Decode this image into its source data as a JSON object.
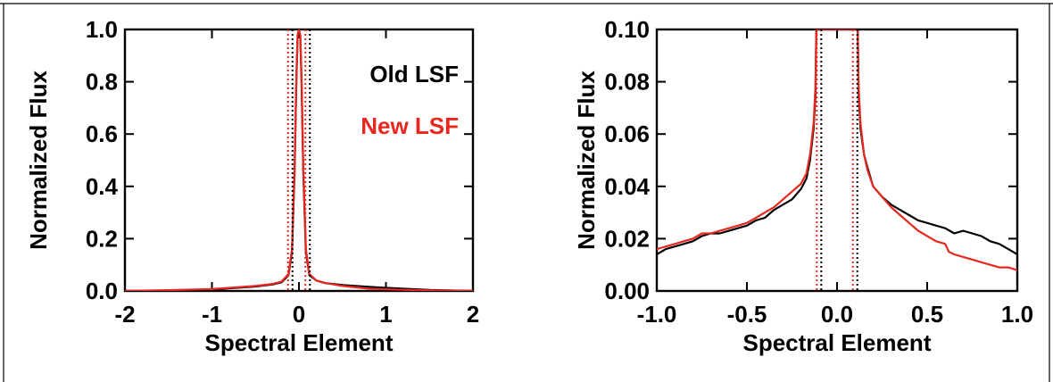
{
  "colors": {
    "old": "#000000",
    "new": "#e8281f"
  },
  "chart_data": [
    {
      "type": "line",
      "title": "",
      "xlabel": "Spectral Element",
      "ylabel": "Normalized Flux",
      "xlim": [
        -2,
        2
      ],
      "ylim": [
        0,
        1.0
      ],
      "x_ticks": [
        -2,
        -1,
        0,
        1,
        2
      ],
      "x_tick_labels": [
        "-2",
        "-1",
        "0",
        "1",
        "2"
      ],
      "y_ticks": [
        0,
        0.2,
        0.4,
        0.6,
        0.8,
        1.0
      ],
      "y_tick_labels": [
        "0.0",
        "0.2",
        "0.4",
        "0.6",
        "0.8",
        "1.0"
      ],
      "grid": false,
      "legend": {
        "placement": "top-right",
        "entries": [
          "Old LSF",
          "New LSF"
        ]
      },
      "vlines": [
        {
          "x": -0.1,
          "style": "dotted",
          "series": "Old LSF"
        },
        {
          "x": 0.1,
          "style": "dotted",
          "series": "Old LSF"
        },
        {
          "x": -0.1,
          "style": "dotted",
          "series": "New LSF"
        },
        {
          "x": 0.1,
          "style": "dotted",
          "series": "New LSF"
        }
      ],
      "series": [
        {
          "name": "Old LSF",
          "color": "#000000",
          "x": [
            -2.0,
            -1.5,
            -1.0,
            -0.5,
            -0.3,
            -0.2,
            -0.12,
            -0.08,
            -0.05,
            -0.03,
            -0.015,
            0.0,
            0.015,
            0.03,
            0.05,
            0.08,
            0.12,
            0.2,
            0.3,
            0.5,
            0.8,
            1.0,
            1.5,
            2.0
          ],
          "y": [
            0.0,
            0.002,
            0.005,
            0.017,
            0.025,
            0.033,
            0.06,
            0.15,
            0.45,
            0.8,
            0.97,
            1.0,
            0.97,
            0.8,
            0.45,
            0.15,
            0.06,
            0.04,
            0.03,
            0.023,
            0.016,
            0.012,
            0.004,
            0.0
          ]
        },
        {
          "name": "New LSF",
          "color": "#e8281f",
          "x": [
            -2.0,
            -1.5,
            -1.0,
            -0.5,
            -0.3,
            -0.2,
            -0.12,
            -0.08,
            -0.05,
            -0.03,
            -0.015,
            0.0,
            0.015,
            0.03,
            0.05,
            0.08,
            0.12,
            0.2,
            0.3,
            0.5,
            0.8,
            1.0,
            1.5,
            2.0
          ],
          "y": [
            0.0,
            0.003,
            0.007,
            0.019,
            0.027,
            0.036,
            0.065,
            0.16,
            0.47,
            0.82,
            0.98,
            1.0,
            0.98,
            0.82,
            0.47,
            0.16,
            0.065,
            0.04,
            0.031,
            0.019,
            0.009,
            0.006,
            0.002,
            0.0
          ]
        }
      ]
    },
    {
      "type": "line",
      "title": "",
      "xlabel": "Spectral Element",
      "ylabel": "Normalized Flux",
      "xlim": [
        -1.0,
        1.0
      ],
      "ylim": [
        0,
        0.1
      ],
      "x_ticks": [
        -1.0,
        -0.5,
        0.0,
        0.5,
        1.0
      ],
      "x_tick_labels": [
        "-1.0",
        "-0.5",
        "0.0",
        "0.5",
        "1.0"
      ],
      "y_ticks": [
        0,
        0.02,
        0.04,
        0.06,
        0.08,
        0.1
      ],
      "y_tick_labels": [
        "0.00",
        "0.02",
        "0.04",
        "0.06",
        "0.08",
        "0.10"
      ],
      "grid": false,
      "vlines": [
        {
          "x": -0.1,
          "style": "dotted",
          "series": "Old LSF"
        },
        {
          "x": 0.1,
          "style": "dotted",
          "series": "Old LSF"
        },
        {
          "x": -0.1,
          "style": "dotted",
          "series": "New LSF"
        },
        {
          "x": 0.1,
          "style": "dotted",
          "series": "New LSF"
        }
      ],
      "series": [
        {
          "name": "Old LSF",
          "color": "#000000",
          "x": [
            -1.0,
            -0.95,
            -0.9,
            -0.85,
            -0.8,
            -0.75,
            -0.7,
            -0.65,
            -0.6,
            -0.55,
            -0.5,
            -0.45,
            -0.4,
            -0.35,
            -0.3,
            -0.25,
            -0.2,
            -0.17,
            -0.15,
            -0.13,
            -0.12,
            -0.115,
            0.115,
            0.12,
            0.13,
            0.15,
            0.17,
            0.2,
            0.25,
            0.3,
            0.35,
            0.4,
            0.45,
            0.5,
            0.55,
            0.6,
            0.65,
            0.7,
            0.75,
            0.8,
            0.85,
            0.9,
            0.95,
            1.0
          ],
          "y": [
            0.014,
            0.016,
            0.017,
            0.018,
            0.019,
            0.021,
            0.022,
            0.022,
            0.023,
            0.024,
            0.025,
            0.027,
            0.028,
            0.031,
            0.033,
            0.035,
            0.039,
            0.043,
            0.05,
            0.062,
            0.075,
            0.1,
            0.1,
            0.075,
            0.062,
            0.052,
            0.047,
            0.04,
            0.036,
            0.033,
            0.031,
            0.029,
            0.027,
            0.026,
            0.025,
            0.024,
            0.022,
            0.023,
            0.022,
            0.021,
            0.019,
            0.018,
            0.016,
            0.014
          ]
        },
        {
          "name": "New LSF",
          "color": "#e8281f",
          "x": [
            -1.0,
            -0.95,
            -0.9,
            -0.85,
            -0.8,
            -0.75,
            -0.7,
            -0.65,
            -0.6,
            -0.55,
            -0.5,
            -0.45,
            -0.4,
            -0.35,
            -0.3,
            -0.25,
            -0.2,
            -0.17,
            -0.15,
            -0.13,
            -0.12,
            -0.115,
            0.115,
            0.12,
            0.13,
            0.15,
            0.17,
            0.2,
            0.25,
            0.3,
            0.35,
            0.4,
            0.45,
            0.5,
            0.55,
            0.6,
            0.62,
            0.65,
            0.7,
            0.75,
            0.8,
            0.85,
            0.9,
            0.95,
            1.0
          ],
          "y": [
            0.016,
            0.017,
            0.018,
            0.019,
            0.02,
            0.022,
            0.022,
            0.023,
            0.024,
            0.025,
            0.026,
            0.028,
            0.03,
            0.032,
            0.035,
            0.038,
            0.041,
            0.045,
            0.052,
            0.064,
            0.078,
            0.1,
            0.1,
            0.078,
            0.064,
            0.052,
            0.046,
            0.04,
            0.036,
            0.032,
            0.029,
            0.026,
            0.023,
            0.021,
            0.019,
            0.018,
            0.015,
            0.014,
            0.013,
            0.012,
            0.011,
            0.01,
            0.009,
            0.009,
            0.008
          ]
        }
      ]
    }
  ]
}
